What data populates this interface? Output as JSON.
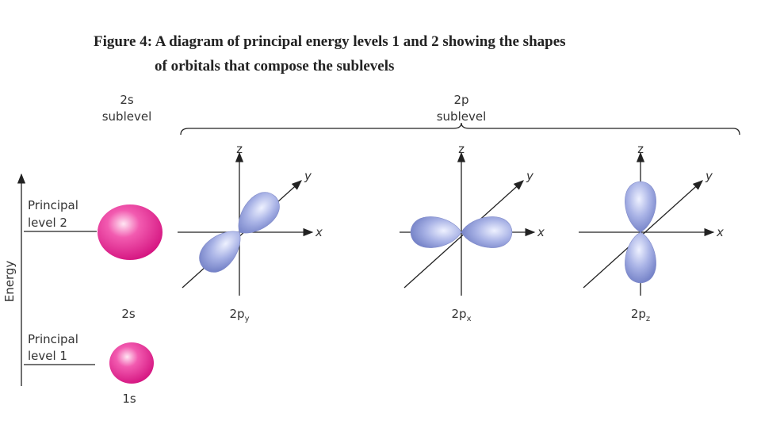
{
  "caption": [
    "Figure 4: A diagram of principal energy levels 1 and 2 showing the shapes",
    "of orbitals that compose the sublevels"
  ],
  "sublevels": [
    {
      "name": "2s",
      "word": "sublevel"
    },
    {
      "name": "2p",
      "word": "sublevel"
    }
  ],
  "energy_axis": "Energy",
  "levels": [
    {
      "lines": [
        "Principal",
        "level 2"
      ]
    },
    {
      "lines": [
        "Principal",
        "level 1"
      ]
    }
  ],
  "s_orbitals": [
    "2s",
    "1s"
  ],
  "p_orbitals": [
    {
      "base": "2p",
      "sub": "y",
      "axes": [
        "z",
        "y",
        "x"
      ]
    },
    {
      "base": "2p",
      "sub": "x",
      "axes": [
        "z",
        "y",
        "x"
      ]
    },
    {
      "base": "2p",
      "sub": "z",
      "axes": [
        "z",
        "y",
        "x"
      ]
    }
  ]
}
